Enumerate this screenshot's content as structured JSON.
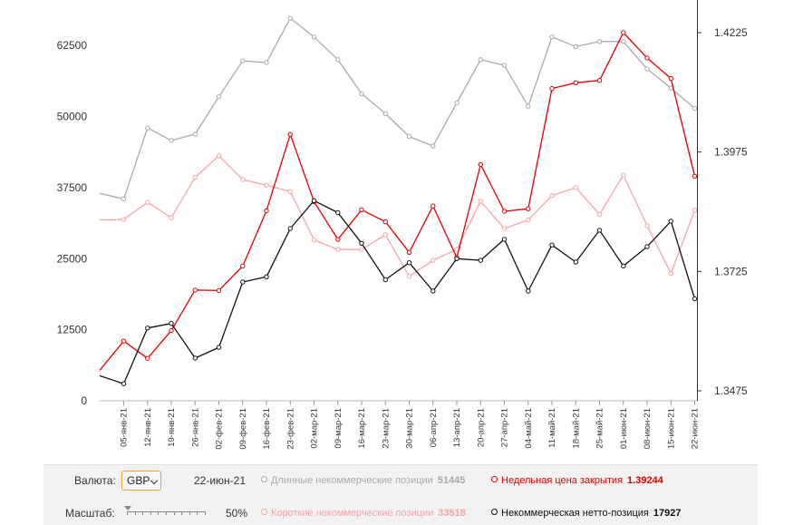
{
  "chart_data": {
    "type": "line",
    "categories": [
      "05-янв-21",
      "12-янв-21",
      "19-янв-21",
      "26-янв-21",
      "02-фев-21",
      "09-фев-21",
      "16-фев-21",
      "23-фев-21",
      "02-мар-21",
      "09-мар-21",
      "16-мар-21",
      "23-мар-21",
      "30-мар-21",
      "06-апр-21",
      "13-апр-21",
      "20-апр-21",
      "27-апр-21",
      "04-май-21",
      "11-май-21",
      "18-май-21",
      "25-май-21",
      "01-июн-21",
      "08-июн-21",
      "15-июн-21",
      "22-июн-21"
    ],
    "left_axis": {
      "ticks": [
        "0",
        "12500",
        "25000",
        "37500",
        "50000",
        "62500"
      ],
      "ylim": [
        0,
        70500
      ]
    },
    "right_axis": {
      "ticks": [
        "1.3475",
        "1.3725",
        "1.3975",
        "1.4225"
      ],
      "ylim": [
        1.3475,
        1.4225
      ]
    },
    "lead_in": {
      "long": 36500,
      "short": 31800,
      "net": 4400,
      "price": 1.3518
    },
    "series": [
      {
        "name": "Длинные некоммерческие позиции",
        "axis": "left",
        "color": "#aaaaaa",
        "values": [
          35500,
          48000,
          45800,
          46900,
          53500,
          59800,
          59500,
          67300,
          64000,
          60000,
          54000,
          50500,
          46500,
          44800,
          52400,
          60000,
          59000,
          51800,
          64000,
          62300,
          63200,
          63200,
          58400,
          55000,
          51445
        ]
      },
      {
        "name": "Короткие некоммерческие позиции",
        "axis": "left",
        "color": "#f4a6a6",
        "values": [
          31900,
          34900,
          32200,
          39300,
          43100,
          38900,
          37900,
          36800,
          28300,
          26600,
          26600,
          29200,
          21900,
          24700,
          26600,
          35100,
          30300,
          31800,
          36100,
          37500,
          32800,
          39700,
          30800,
          22400,
          33518
        ]
      },
      {
        "name": "Недельная цена закрытия",
        "axis": "right",
        "color": "#e00000",
        "values": [
          1.3579,
          1.3543,
          1.3601,
          1.3686,
          1.3685,
          1.3736,
          1.3852,
          1.4012,
          1.3871,
          1.3792,
          1.3854,
          1.3829,
          1.3765,
          1.3862,
          1.3754,
          1.3949,
          1.3851,
          1.3856,
          1.4108,
          1.412,
          1.4125,
          1.4225,
          1.4172,
          1.4129,
          1.39244
        ]
      },
      {
        "name": "Некоммерческая нетто-позиция",
        "axis": "left",
        "color": "#111111",
        "values": [
          3000,
          12800,
          13600,
          7500,
          9400,
          20900,
          21800,
          30300,
          35200,
          33100,
          27700,
          21300,
          24300,
          19300,
          25000,
          24700,
          28400,
          19300,
          27400,
          24400,
          30000,
          23700,
          27100,
          31600,
          17927
        ]
      }
    ]
  },
  "controls": {
    "currency_label": "Валюта:",
    "currency_value": "GBP",
    "date": "22-июн-21",
    "scale_label": "Масштаб:",
    "scale_value": "50%",
    "scale_level": 0.5
  },
  "legend": {
    "long_label": "Длинные некоммерческие позиции",
    "long_value": "51445",
    "short_label": "Короткие некоммерческие позиции",
    "short_value": "33518",
    "price_label": "Недельная цена закрытия",
    "price_value": "1.39244",
    "net_label": "Некоммерческая нетто-позиция",
    "net_value": "17927"
  }
}
